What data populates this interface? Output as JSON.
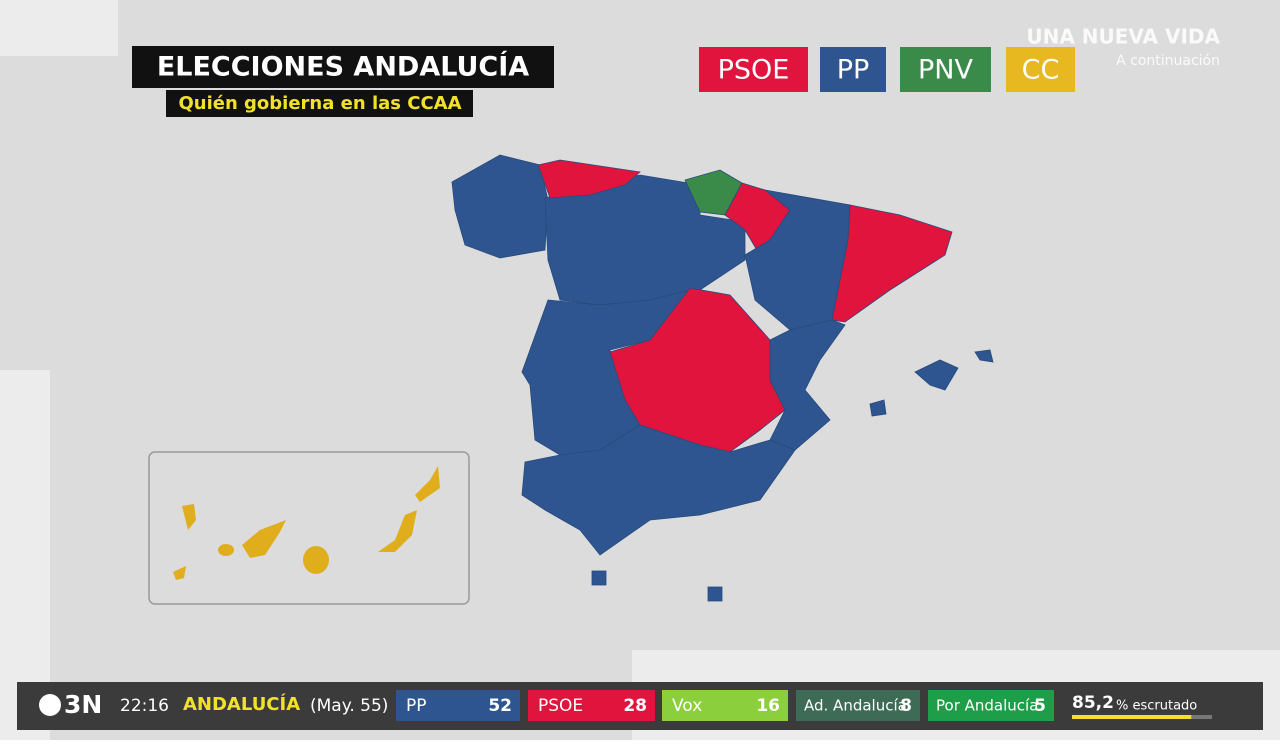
{
  "header": {
    "title": "ELECCIONES ANDALUCÍA",
    "subtitle": "Quién gobierna en las CCAA"
  },
  "legend": [
    {
      "label": "PSOE",
      "color": "#e0143c"
    },
    {
      "label": "PP",
      "color": "#2e5590"
    },
    {
      "label": "PNV",
      "color": "#3a8a4a"
    },
    {
      "label": "CC",
      "color": "#e8b820"
    }
  ],
  "next_program": {
    "title": "UNA NUEVA VIDA",
    "subtitle": "A continuación"
  },
  "ticker": {
    "channel": "3N",
    "time": "22:16",
    "region": "ANDALUCÍA",
    "majority": "(May. 55)",
    "parties": [
      {
        "name": "PP",
        "seats": 52,
        "color": "#2e5590"
      },
      {
        "name": "PSOE",
        "seats": 28,
        "color": "#e0143c"
      },
      {
        "name": "Vox",
        "seats": 16,
        "color": "#8ccf3c"
      },
      {
        "name": "Ad. Andalucía",
        "seats": 8,
        "color": "#3d6b55"
      },
      {
        "name": "Por Andalucía",
        "seats": 5,
        "color": "#1f9e4a"
      }
    ],
    "counted": {
      "value": "85,2",
      "percent": 85.2,
      "label": "% escrutado"
    }
  }
}
